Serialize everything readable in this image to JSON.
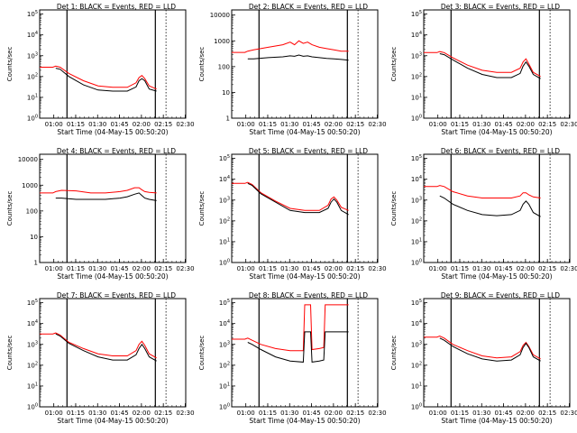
{
  "figure": {
    "x_ticks": [
      "01:00",
      "01:15",
      "01:30",
      "01:45",
      "02:00",
      "02:15",
      "02:30"
    ],
    "xlabel": "Start Time (04-May-15 00:50:20)",
    "ylabel": "Counts/sec",
    "colors": {
      "events": "#000000",
      "lld": "#ff0000"
    }
  },
  "chart_data": [
    {
      "type": "line",
      "title": "Det 1: BLACK = Events, RED = LLD",
      "y_ticks": [
        "10^0",
        "10^1",
        "10^2",
        "10^3",
        "10^4",
        "10^5"
      ],
      "ylim_log10": [
        0,
        5.2
      ],
      "x_minutes_from_start": [
        11,
        14,
        20,
        30,
        40,
        50,
        60,
        66,
        68,
        70,
        72,
        75,
        80
      ],
      "series": [
        {
          "name": "Events",
          "log10_values": [
            2.4,
            2.35,
            2.0,
            1.6,
            1.35,
            1.3,
            1.3,
            1.5,
            1.8,
            1.9,
            1.8,
            1.4,
            1.3
          ]
        },
        {
          "name": "LLD",
          "log10_values": [
            2.5,
            2.45,
            2.15,
            1.8,
            1.55,
            1.48,
            1.48,
            1.7,
            1.95,
            2.05,
            1.9,
            1.55,
            1.4
          ]
        }
      ]
    },
    {
      "type": "line",
      "title": "Det 2: BLACK = Events, RED = LLD",
      "y_ticks": [
        "1",
        "10",
        "100",
        "1000",
        "10000"
      ],
      "ylim_log10": [
        0,
        4.2
      ],
      "x_minutes_from_start": [
        11,
        15,
        25,
        35,
        40,
        43,
        46,
        49,
        52,
        55,
        60,
        65,
        70,
        75,
        80
      ],
      "series": [
        {
          "name": "Events",
          "log10_values": [
            2.3,
            2.3,
            2.35,
            2.38,
            2.42,
            2.4,
            2.45,
            2.4,
            2.42,
            2.38,
            2.35,
            2.32,
            2.3,
            2.28,
            2.25
          ]
        },
        {
          "name": "LLD",
          "log10_values": [
            2.6,
            2.65,
            2.75,
            2.85,
            2.95,
            2.85,
            3.0,
            2.9,
            2.95,
            2.85,
            2.75,
            2.7,
            2.65,
            2.6,
            2.6
          ]
        }
      ]
    },
    {
      "type": "line",
      "title": "Det 3: BLACK = Events, RED = LLD",
      "y_ticks": [
        "10^0",
        "10^1",
        "10^2",
        "10^3",
        "10^4",
        "10^5"
      ],
      "ylim_log10": [
        0,
        5.2
      ],
      "x_minutes_from_start": [
        11,
        14,
        20,
        30,
        40,
        50,
        60,
        66,
        68,
        70,
        72,
        75,
        80
      ],
      "series": [
        {
          "name": "Events",
          "log10_values": [
            3.1,
            3.05,
            2.8,
            2.4,
            2.1,
            1.95,
            1.95,
            2.15,
            2.5,
            2.7,
            2.5,
            2.1,
            1.9
          ]
        },
        {
          "name": "LLD",
          "log10_values": [
            3.2,
            3.15,
            2.9,
            2.55,
            2.3,
            2.2,
            2.2,
            2.4,
            2.7,
            2.85,
            2.6,
            2.2,
            2.0
          ]
        }
      ]
    },
    {
      "type": "line",
      "title": "Det 4: BLACK = Events, RED = LLD",
      "y_ticks": [
        "1",
        "10",
        "100",
        "1000",
        "10000"
      ],
      "ylim_log10": [
        0,
        4.2
      ],
      "x_minutes_from_start": [
        11,
        15,
        25,
        35,
        45,
        55,
        60,
        65,
        68,
        70,
        72,
        75,
        80
      ],
      "series": [
        {
          "name": "Events",
          "log10_values": [
            2.5,
            2.5,
            2.45,
            2.45,
            2.45,
            2.5,
            2.55,
            2.65,
            2.7,
            2.6,
            2.5,
            2.45,
            2.4
          ]
        },
        {
          "name": "LLD",
          "log10_values": [
            2.75,
            2.8,
            2.78,
            2.7,
            2.7,
            2.75,
            2.8,
            2.9,
            2.9,
            2.82,
            2.75,
            2.72,
            2.7
          ]
        }
      ]
    },
    {
      "type": "line",
      "title": "Det 5: BLACK = Events, RED = LLD",
      "y_ticks": [
        "10^0",
        "10^1",
        "10^2",
        "10^3",
        "10^4",
        "10^5"
      ],
      "ylim_log10": [
        0,
        5.2
      ],
      "x_minutes_from_start": [
        11,
        14,
        20,
        30,
        40,
        50,
        60,
        66,
        68,
        70,
        72,
        75,
        80
      ],
      "series": [
        {
          "name": "Events",
          "log10_values": [
            3.8,
            3.7,
            3.3,
            2.9,
            2.5,
            2.4,
            2.4,
            2.6,
            2.9,
            3.05,
            2.9,
            2.5,
            2.3
          ]
        },
        {
          "name": "LLD",
          "log10_values": [
            3.85,
            3.75,
            3.35,
            2.95,
            2.6,
            2.5,
            2.5,
            2.75,
            3.05,
            3.15,
            3.0,
            2.65,
            2.5
          ]
        }
      ]
    },
    {
      "type": "line",
      "title": "Det 6: BLACK = Events, RED = LLD",
      "y_ticks": [
        "10^0",
        "10^1",
        "10^2",
        "10^3",
        "10^4",
        "10^5"
      ],
      "ylim_log10": [
        0,
        5.2
      ],
      "x_minutes_from_start": [
        11,
        14,
        20,
        30,
        40,
        50,
        60,
        66,
        68,
        70,
        72,
        75,
        80
      ],
      "series": [
        {
          "name": "Events",
          "log10_values": [
            3.2,
            3.1,
            2.8,
            2.5,
            2.3,
            2.25,
            2.3,
            2.5,
            2.8,
            2.95,
            2.8,
            2.4,
            2.2
          ]
        },
        {
          "name": "LLD",
          "log10_values": [
            3.7,
            3.65,
            3.4,
            3.2,
            3.1,
            3.1,
            3.1,
            3.2,
            3.35,
            3.35,
            3.25,
            3.15,
            3.1
          ]
        }
      ]
    },
    {
      "type": "line",
      "title": "Det 7: BLACK = Events, RED = LLD",
      "y_ticks": [
        "10^0",
        "10^1",
        "10^2",
        "10^3",
        "10^4",
        "10^5"
      ],
      "ylim_log10": [
        0,
        5.2
      ],
      "x_minutes_from_start": [
        11,
        14,
        20,
        30,
        40,
        50,
        60,
        66,
        68,
        70,
        72,
        75,
        80
      ],
      "series": [
        {
          "name": "Events",
          "log10_values": [
            3.5,
            3.4,
            3.05,
            2.7,
            2.4,
            2.25,
            2.25,
            2.5,
            2.8,
            3.0,
            2.8,
            2.4,
            2.2
          ]
        },
        {
          "name": "LLD",
          "log10_values": [
            3.55,
            3.45,
            3.1,
            2.8,
            2.55,
            2.45,
            2.45,
            2.7,
            3.0,
            3.15,
            2.95,
            2.55,
            2.35
          ]
        }
      ]
    },
    {
      "type": "line",
      "title": "Det 8: BLACK = Events, RED = LLD",
      "y_ticks": [
        "10^0",
        "10^1",
        "10^2",
        "10^3",
        "10^4",
        "10^5"
      ],
      "ylim_log10": [
        0,
        5.2
      ],
      "x_minutes_from_start": [
        11,
        14,
        20,
        30,
        40,
        49,
        50,
        54,
        55,
        60,
        63,
        64,
        66,
        68,
        70,
        72,
        75,
        80
      ],
      "series": [
        {
          "name": "Events",
          "log10_values": [
            3.1,
            3.0,
            2.75,
            2.4,
            2.2,
            2.15,
            3.6,
            3.6,
            2.15,
            2.2,
            2.25,
            3.6,
            3.6,
            3.6,
            3.6,
            3.6,
            3.6,
            3.6
          ]
        },
        {
          "name": "LLD",
          "log10_values": [
            3.3,
            3.2,
            3.0,
            2.8,
            2.7,
            2.7,
            4.9,
            4.9,
            2.75,
            2.8,
            2.85,
            4.9,
            4.9,
            4.9,
            4.9,
            4.9,
            4.9,
            4.9
          ]
        }
      ]
    },
    {
      "type": "line",
      "title": "Det 9: BLACK = Events, RED = LLD",
      "y_ticks": [
        "10^0",
        "10^1",
        "10^2",
        "10^3",
        "10^4",
        "10^5"
      ],
      "ylim_log10": [
        0,
        5.2
      ],
      "x_minutes_from_start": [
        11,
        14,
        20,
        30,
        40,
        50,
        60,
        66,
        68,
        70,
        72,
        75,
        80
      ],
      "series": [
        {
          "name": "Events",
          "log10_values": [
            3.3,
            3.2,
            2.9,
            2.55,
            2.3,
            2.2,
            2.25,
            2.5,
            2.85,
            3.05,
            2.85,
            2.4,
            2.2
          ]
        },
        {
          "name": "LLD",
          "log10_values": [
            3.4,
            3.3,
            3.0,
            2.7,
            2.45,
            2.35,
            2.4,
            2.65,
            2.95,
            3.1,
            2.9,
            2.5,
            2.3
          ]
        }
      ]
    }
  ]
}
